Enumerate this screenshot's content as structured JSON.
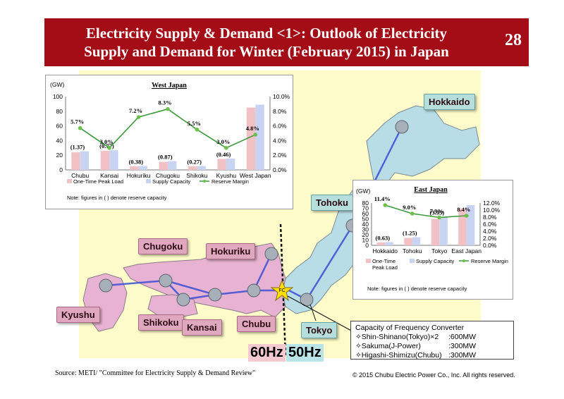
{
  "header": {
    "title_line1": "Electricity Supply & Demand <1>:  Outlook of Electricity",
    "title_line2": "Supply and Demand for Winter (February 2015) in Japan",
    "page_number": "28"
  },
  "colors": {
    "header_bg": "#a50d16",
    "one_time_peak_load": "#f2c1c6",
    "supply_capacity": "#c8d4f2",
    "reserve_margin": "#3c9a3c",
    "west_region": "#e8b3d2",
    "east_region": "#b9dde6"
  },
  "regions": {
    "hokkaido": "Hokkaido",
    "tohoku": "Tohoku",
    "chugoku": "Chugoku",
    "hokuriku": "Hokuriku",
    "kyushu": "Kyushu",
    "shikoku": "Shikoku",
    "kansai": "Kansai",
    "chubu": "Chubu",
    "tokyo": "Tokyo",
    "fc_marker": "FC"
  },
  "frequency": {
    "hz60": "60Hz",
    "hz50": "50Hz"
  },
  "converter": {
    "title": "Capacity of Frequency Converter",
    "rows": [
      {
        "name": "✧Shin-Shinano(Tokyo)×2",
        "value": ":600MW"
      },
      {
        "name": "✧Sakuma(J-Power)",
        "value": ":300MW"
      },
      {
        "name": "✧Higashi-Shimizu(Chubu)",
        "value": ":300MW"
      }
    ]
  },
  "source": "Source: METI/ \"Committee for Electricity Supply & Demand Review\"",
  "copyright": "© 2015 Chubu Electric Power Co., Inc. All rights reserved.",
  "chart_data": [
    {
      "type": "bar",
      "title": "West Japan",
      "y_unit": "(GW)",
      "categories": [
        "Chubu",
        "Kansai",
        "Hokuriku",
        "Chugoku",
        "Shikoku",
        "Kyushu",
        "West Japan"
      ],
      "ylim": [
        0,
        100
      ],
      "yticks": [
        "0",
        "20",
        "40",
        "60",
        "80",
        "100"
      ],
      "y2lim": [
        0,
        10
      ],
      "y2ticks": [
        "0.0%",
        "2.0%",
        "4.0%",
        "6.0%",
        "8.0%",
        "10.0%"
      ],
      "series": [
        {
          "name": "One-Time Peak Load",
          "values": [
            24,
            26,
            5,
            11,
            5,
            15,
            85
          ]
        },
        {
          "name": "Supply Capacity",
          "values": [
            25.4,
            26.8,
            5.4,
            11.9,
            5.3,
            15.5,
            89
          ]
        },
        {
          "name": "Reserve Margin",
          "axis": "secondary",
          "values": [
            5.7,
            3.0,
            7.2,
            8.3,
            5.5,
            3.0,
            4.8
          ]
        }
      ],
      "reserve_labels": [
        "5.7%",
        "3.0%",
        "7.2%",
        "8.3%",
        "5.5%",
        "3.0%",
        "4.8%"
      ],
      "reserve_capacity_labels": [
        "(1.37)",
        "(0.77)",
        "(0.38)",
        "(0.87)",
        "(0.27)",
        "(0.46)",
        ""
      ],
      "legend": {
        "peak": "One-Time Peak Load",
        "supply": "Supply Capacity",
        "margin": "Reserve Margin"
      },
      "note": "Note: figures in ( ) denote reserve capacity"
    },
    {
      "type": "bar",
      "title": "East Japan",
      "y_unit": "(GW)",
      "categories": [
        "Hokkaido",
        "Tohoku",
        "Tokyo",
        "East Japan"
      ],
      "ylim": [
        0,
        80
      ],
      "yticks": [
        "0",
        "10",
        "20",
        "30",
        "40",
        "50",
        "60",
        "70",
        "80"
      ],
      "y2lim": [
        0,
        12
      ],
      "y2ticks": [
        "0.0%",
        "2.0%",
        "4.0%",
        "6.0%",
        "8.0%",
        "10.0%",
        "12.0%"
      ],
      "series": [
        {
          "name": "One-Time Peak Load",
          "values": [
            5.5,
            14,
            50,
            70
          ]
        },
        {
          "name": "Supply Capacity",
          "values": [
            6.1,
            15.3,
            54,
            76
          ]
        },
        {
          "name": "Reserve Margin",
          "axis": "secondary",
          "values": [
            11.4,
            9.0,
            7.9,
            8.4
          ]
        }
      ],
      "reserve_labels": [
        "11.4%",
        "9.0%",
        "7.9%",
        "8.4%"
      ],
      "reserve_capacity_labels": [
        "(0.63)",
        "(1.25)",
        "(3.95)",
        ""
      ],
      "legend": {
        "peak_line1": "One-Time",
        "peak_line2": "Peak Load",
        "supply": "Supply Capacity",
        "margin": "Reserve Margin"
      },
      "note": "Note: figures in ( ) denote reserve capacity"
    }
  ]
}
